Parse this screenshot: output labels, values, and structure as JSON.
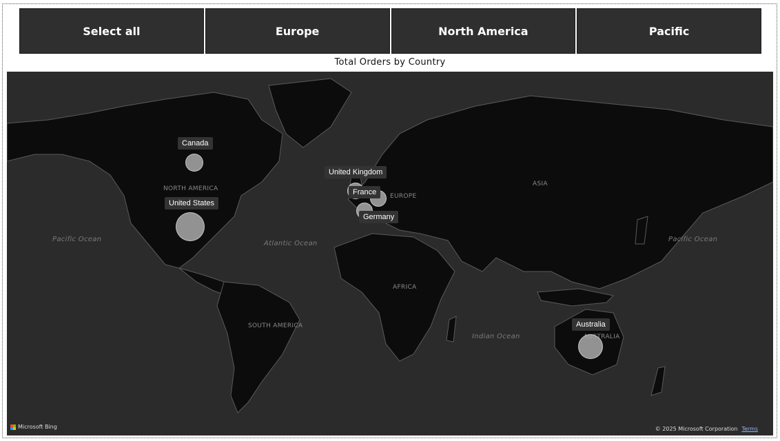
{
  "slicer": {
    "buttons": [
      {
        "label": "Select all"
      },
      {
        "label": "Europe"
      },
      {
        "label": "North America"
      },
      {
        "label": "Pacific"
      }
    ]
  },
  "map_title": "Total Orders by Country",
  "map": {
    "oceans": {
      "pacific_left": "Pacific Ocean",
      "atlantic": "Atlantic Ocean",
      "indian": "Indian Ocean",
      "pacific_right": "Pacific Ocean"
    },
    "regions": {
      "north_america": "NORTH AMERICA",
      "south_america": "SOUTH AMERICA",
      "europe": "EUROPE",
      "africa": "AFRICA",
      "asia": "ASIA",
      "australia": "AUSTRALIA"
    },
    "countries": [
      {
        "name": "Canada"
      },
      {
        "name": "United States"
      },
      {
        "name": "United Kingdom"
      },
      {
        "name": "France"
      },
      {
        "name": "Germany"
      },
      {
        "name": "Australia"
      }
    ],
    "attribution": {
      "bing": "Microsoft Bing",
      "copyright": "© 2025 Microsoft Corporation",
      "terms": "Terms"
    }
  },
  "colors": {
    "slicer_bg": "#2f2f2f",
    "map_bg": "#2b2b2b",
    "land": "#0c0c0c",
    "borders": "#5a5a5a",
    "bubble": "#aaaaaa"
  }
}
